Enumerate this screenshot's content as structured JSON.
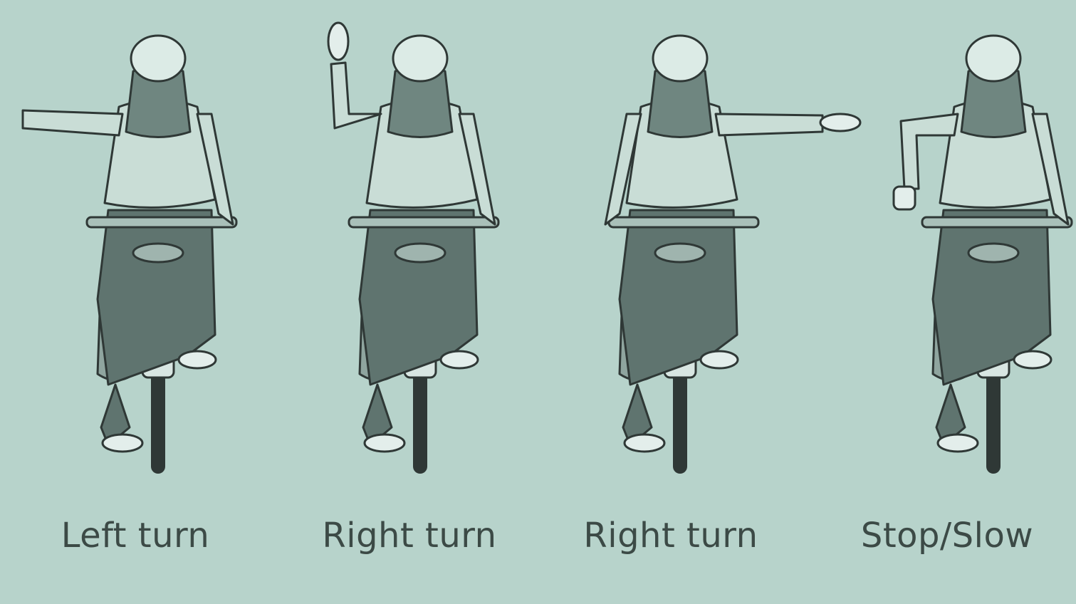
{
  "colors": {
    "background": "#b7d3cb",
    "ink": "#2f3836",
    "jacket": "#c9ddd6",
    "helmet": "#dcebe6",
    "hair": "#6f8680",
    "trousers": "#5f746f",
    "bag": "#8fa59f",
    "text": "#3c4a46"
  },
  "signals": [
    {
      "label": "Left turn",
      "arm": "left-horizontal"
    },
    {
      "label": "Right turn",
      "arm": "left-raised"
    },
    {
      "label": "Right turn",
      "arm": "right-horizontal"
    },
    {
      "label": "Stop/Slow",
      "arm": "left-down"
    }
  ]
}
